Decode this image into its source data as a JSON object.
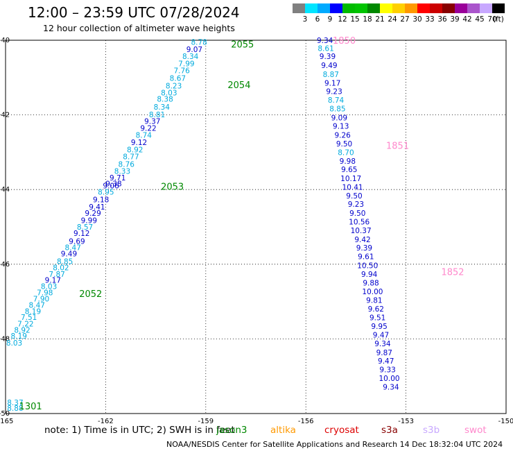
{
  "header": {
    "title": "12:00 – 23:59 UTC 07/28/2024",
    "subtitle": "12 hour collection of altimeter wave heights"
  },
  "colorbar": {
    "unit_label": "(ft)",
    "ticks": [
      "3",
      "6",
      "9",
      "12",
      "15",
      "18",
      "21",
      "24",
      "27",
      "30",
      "33",
      "36",
      "39",
      "42",
      "45",
      "70"
    ],
    "colors": [
      "#808080",
      "#00e5ff",
      "#00aaff",
      "#0000ff",
      "#00bb00",
      "#00c400",
      "#008800",
      "#ffff00",
      "#ffd000",
      "#ff9900",
      "#ff0000",
      "#cc0000",
      "#880000",
      "#990099",
      "#aa55cc",
      "#c8a8ff",
      "#000000"
    ]
  },
  "footer": {
    "note": "note: 1) Time is in UTC; 2) SWH is in feet",
    "credit": "NOAA/NESDIS Center for Satellite Applications and Research   14 Dec 18:32:04 UTC 2024",
    "satellites": [
      {
        "name": "jason3",
        "color": "#008800"
      },
      {
        "name": "altika",
        "color": "#ff9900"
      },
      {
        "name": "cryosat",
        "color": "#dd0000"
      },
      {
        "name": "s3a",
        "color": "#880000"
      },
      {
        "name": "s3b",
        "color": "#c8a8ff"
      },
      {
        "name": "swot",
        "color": "#ff88cc"
      }
    ]
  },
  "chart_data": {
    "type": "scatter",
    "xlim": [
      -165,
      -150
    ],
    "ylim": [
      -50,
      -40
    ],
    "x_ticks": [
      -165,
      -162,
      -159,
      -156,
      -153,
      -150
    ],
    "y_ticks": [
      -40,
      -42,
      -44,
      -46,
      -48,
      -50
    ],
    "x_tick_labels": [
      "-165",
      "-162",
      "-159",
      "-156",
      "-153",
      "-150"
    ],
    "y_tick_labels": [
      "-40",
      "-42",
      "-44",
      "-46",
      "-48",
      "-50"
    ],
    "grid": true,
    "colors": {
      "color_0_9": "#0000cc",
      "color_6_9": "#00aadd",
      "jason3_label": "#008800",
      "swot_label": "#ff88cc"
    },
    "series": [
      {
        "name": "jason3",
        "color": "#008800",
        "points": [
          {
            "x": -164.71,
            "y": -49.85,
            "v": "8.88"
          },
          {
            "x": -164.71,
            "y": -49.7,
            "v": "8.37"
          },
          {
            "x": -164.74,
            "y": -48.1,
            "v": "8.03"
          },
          {
            "x": -164.6,
            "y": -47.92,
            "v": "8.19"
          },
          {
            "x": -164.5,
            "y": -47.76,
            "v": "8.92"
          },
          {
            "x": -164.4,
            "y": -47.59,
            "v": "7.22"
          },
          {
            "x": -164.3,
            "y": -47.42,
            "v": "7.51"
          },
          {
            "x": -164.18,
            "y": -47.26,
            "v": "8.19"
          },
          {
            "x": -164.06,
            "y": -47.09,
            "v": "8.47"
          },
          {
            "x": -163.93,
            "y": -46.92,
            "v": "7.90"
          },
          {
            "x": -163.82,
            "y": -46.76,
            "v": "7.98"
          },
          {
            "x": -163.7,
            "y": -46.59,
            "v": "8.03"
          },
          {
            "x": -163.58,
            "y": -46.42,
            "v": "9.17"
          },
          {
            "x": -163.46,
            "y": -46.26,
            "v": "7.87"
          },
          {
            "x": -163.34,
            "y": -46.09,
            "v": "8.02"
          },
          {
            "x": -163.22,
            "y": -45.92,
            "v": "8.85"
          },
          {
            "x": -163.1,
            "y": -45.72,
            "v": "9.49"
          },
          {
            "x": -162.98,
            "y": -45.55,
            "v": "8.47"
          },
          {
            "x": -162.86,
            "y": -45.38,
            "v": "9.69"
          },
          {
            "x": -162.72,
            "y": -45.17,
            "v": "9.12"
          },
          {
            "x": -162.62,
            "y": -45.0,
            "v": "8.57"
          },
          {
            "x": -162.5,
            "y": -44.82,
            "v": "9.99"
          },
          {
            "x": -162.38,
            "y": -44.63,
            "v": "9.29"
          },
          {
            "x": -162.26,
            "y": -44.46,
            "v": "9.41"
          },
          {
            "x": -162.14,
            "y": -44.27,
            "v": "9.18"
          },
          {
            "x": -161.99,
            "y": -44.06,
            "v": "8.95"
          },
          {
            "x": -161.84,
            "y": -43.89,
            "v": "9.06"
          },
          {
            "x": -161.76,
            "y": -43.84,
            "v": "9.38"
          },
          {
            "x": -161.64,
            "y": -43.68,
            "v": "9.71"
          },
          {
            "x": -161.5,
            "y": -43.5,
            "v": "8.33"
          },
          {
            "x": -161.38,
            "y": -43.32,
            "v": "8.76"
          },
          {
            "x": -161.24,
            "y": -43.11,
            "v": "8.77"
          },
          {
            "x": -161.12,
            "y": -42.93,
            "v": "8.92"
          },
          {
            "x": -161.0,
            "y": -42.73,
            "v": "9.12"
          },
          {
            "x": -160.86,
            "y": -42.54,
            "v": "8.74"
          },
          {
            "x": -160.72,
            "y": -42.35,
            "v": "9.22"
          },
          {
            "x": -160.6,
            "y": -42.17,
            "v": "9.37"
          },
          {
            "x": -160.46,
            "y": -41.99,
            "v": "8.81"
          },
          {
            "x": -160.32,
            "y": -41.78,
            "v": "8.34"
          },
          {
            "x": -160.22,
            "y": -41.57,
            "v": "8.38"
          },
          {
            "x": -160.1,
            "y": -41.4,
            "v": "8.03"
          },
          {
            "x": -159.96,
            "y": -41.22,
            "v": "8.23"
          },
          {
            "x": -159.84,
            "y": -41.01,
            "v": "8.67"
          },
          {
            "x": -159.72,
            "y": -40.81,
            "v": "7.76"
          },
          {
            "x": -159.58,
            "y": -40.62,
            "v": "7.99"
          },
          {
            "x": -159.46,
            "y": -40.43,
            "v": "8.34"
          },
          {
            "x": -159.34,
            "y": -40.24,
            "v": "9.07"
          },
          {
            "x": -159.2,
            "y": -40.05,
            "v": "8.78"
          }
        ]
      },
      {
        "name": "swot",
        "color": "#ff88cc",
        "points": [
          {
            "x": -155.43,
            "y": -40.0,
            "v": "9.34"
          },
          {
            "x": -155.4,
            "y": -40.21,
            "v": "8.61"
          },
          {
            "x": -155.35,
            "y": -40.43,
            "v": "9.39"
          },
          {
            "x": -155.3,
            "y": -40.67,
            "v": "9.49"
          },
          {
            "x": -155.25,
            "y": -40.91,
            "v": "8.87"
          },
          {
            "x": -155.2,
            "y": -41.14,
            "v": "9.17"
          },
          {
            "x": -155.15,
            "y": -41.37,
            "v": "9.23"
          },
          {
            "x": -155.1,
            "y": -41.6,
            "v": "8.74"
          },
          {
            "x": -155.05,
            "y": -41.83,
            "v": "8.85"
          },
          {
            "x": -155.0,
            "y": -42.07,
            "v": "9.09"
          },
          {
            "x": -154.95,
            "y": -42.3,
            "v": "9.13"
          },
          {
            "x": -154.9,
            "y": -42.54,
            "v": "9.26"
          },
          {
            "x": -154.85,
            "y": -42.77,
            "v": "9.50"
          },
          {
            "x": -154.8,
            "y": -43.0,
            "v": "8.70"
          },
          {
            "x": -154.75,
            "y": -43.23,
            "v": "9.98"
          },
          {
            "x": -154.7,
            "y": -43.46,
            "v": "9.65"
          },
          {
            "x": -154.65,
            "y": -43.7,
            "v": "10.17"
          },
          {
            "x": -154.6,
            "y": -43.93,
            "v": "10.41"
          },
          {
            "x": -154.55,
            "y": -44.16,
            "v": "9.50"
          },
          {
            "x": -154.5,
            "y": -44.39,
            "v": "9.23"
          },
          {
            "x": -154.45,
            "y": -44.63,
            "v": "9.50"
          },
          {
            "x": -154.4,
            "y": -44.86,
            "v": "10.56"
          },
          {
            "x": -154.35,
            "y": -45.09,
            "v": "10.37"
          },
          {
            "x": -154.3,
            "y": -45.33,
            "v": "9.42"
          },
          {
            "x": -154.25,
            "y": -45.56,
            "v": "9.39"
          },
          {
            "x": -154.2,
            "y": -45.79,
            "v": "9.61"
          },
          {
            "x": -154.15,
            "y": -46.03,
            "v": "10.50"
          },
          {
            "x": -154.1,
            "y": -46.26,
            "v": "9.94"
          },
          {
            "x": -154.05,
            "y": -46.5,
            "v": "9.88"
          },
          {
            "x": -154.0,
            "y": -46.73,
            "v": "10.00"
          },
          {
            "x": -153.95,
            "y": -46.96,
            "v": "9.81"
          },
          {
            "x": -153.9,
            "y": -47.19,
            "v": "9.62"
          },
          {
            "x": -153.85,
            "y": -47.43,
            "v": "9.51"
          },
          {
            "x": -153.8,
            "y": -47.66,
            "v": "9.95"
          },
          {
            "x": -153.75,
            "y": -47.89,
            "v": "9.47"
          },
          {
            "x": -153.7,
            "y": -48.12,
            "v": "9.34"
          },
          {
            "x": -153.65,
            "y": -48.36,
            "v": "9.87"
          },
          {
            "x": -153.6,
            "y": -48.59,
            "v": "9.47"
          },
          {
            "x": -153.55,
            "y": -48.82,
            "v": "9.33"
          },
          {
            "x": -153.5,
            "y": -49.05,
            "v": "10.00"
          },
          {
            "x": -153.45,
            "y": -49.28,
            "v": "9.34"
          }
        ]
      }
    ],
    "time_labels": [
      {
        "text": "1301",
        "x": -164.25,
        "y": -49.8,
        "series": "jason3"
      },
      {
        "text": "2052",
        "x": -162.45,
        "y": -46.78,
        "series": "jason3"
      },
      {
        "text": "2053",
        "x": -160.0,
        "y": -43.91,
        "series": "jason3"
      },
      {
        "text": "2054",
        "x": -158.0,
        "y": -41.19,
        "series": "jason3"
      },
      {
        "text": "2055",
        "x": -157.9,
        "y": -40.1,
        "series": "jason3"
      },
      {
        "text": "1850",
        "x": -154.85,
        "y": -40.0,
        "series": "swot"
      },
      {
        "text": "1851",
        "x": -153.25,
        "y": -42.82,
        "series": "swot"
      },
      {
        "text": "1852",
        "x": -151.6,
        "y": -46.2,
        "series": "swot"
      }
    ]
  }
}
